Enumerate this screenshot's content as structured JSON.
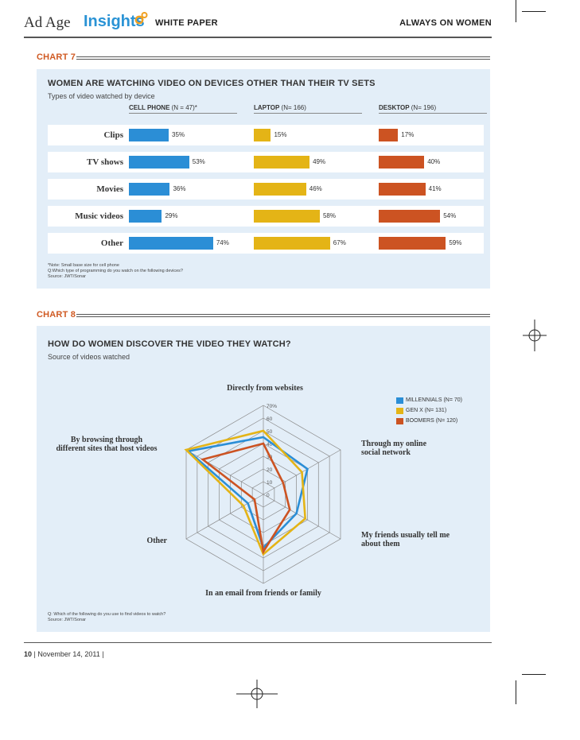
{
  "header": {
    "brand_adage": "Ad Age",
    "brand_insights": "Insights",
    "section": "WHITE PAPER",
    "report": "ALWAYS ON WOMEN"
  },
  "chart7": {
    "label": "CHART 7",
    "title": "WOMEN ARE WATCHING VIDEO ON DEVICES OTHER THAN THEIR TV SETS",
    "subtitle": "Types of video watched by device",
    "footnotes": [
      "*Note: Small base size for cell phone",
      "Q:Which type of programming do you watch on the following devices?",
      "Source: JWT/Sonar"
    ],
    "chart_data": {
      "type": "bar",
      "categories": [
        "Clips",
        "TV shows",
        "Movies",
        "Music videos",
        "Other"
      ],
      "series": [
        {
          "name": "CELL PHONE",
          "n": "(N = 47)*",
          "values": [
            35,
            53,
            36,
            29,
            74
          ],
          "labels": [
            "35%",
            "53%",
            "36%",
            "29%",
            "74%"
          ],
          "color": "#2b8ed6"
        },
        {
          "name": "LAPTOP",
          "n": "(N= 166)",
          "values": [
            15,
            49,
            46,
            58,
            67
          ],
          "labels": [
            "15%",
            "49%",
            "46%",
            "58%",
            "67%"
          ],
          "color": "#e4b416"
        },
        {
          "name": "DESKTOP",
          "n": "(N= 196)",
          "values": [
            17,
            40,
            41,
            54,
            59
          ],
          "labels": [
            "17%",
            "40%",
            "41%",
            "54%",
            "59%"
          ],
          "color": "#cc5322"
        }
      ]
    }
  },
  "chart8": {
    "label": "CHART 8",
    "title": "HOW DO WOMEN DISCOVER THE VIDEO THEY WATCH?",
    "subtitle": "Source of videos watched",
    "footnotes": [
      "Q: Which of the following do you use to find videos to watch?",
      "Source: JWT/Sonar"
    ],
    "chart_data": {
      "type": "radar",
      "axes": [
        "Directly from websites",
        "Through my online social network",
        "My friends usually tell me about them",
        "In an email from friends or family",
        "Other",
        "By browsing through different sites that host videos"
      ],
      "axis_lines": [
        [
          "Directly from websites"
        ],
        [
          "Through my online",
          "social network"
        ],
        [
          "My friends usually tell me",
          "about them"
        ],
        [
          "In an email from friends or family"
        ],
        [
          "Other"
        ],
        [
          "By browsing through",
          "different sites that host videos"
        ]
      ],
      "ticks": [
        "70%",
        "60",
        "50",
        "40",
        "30",
        "20",
        "10",
        "0"
      ],
      "tick_values": [
        70,
        60,
        50,
        40,
        30,
        20,
        10,
        0
      ],
      "rmax": 70,
      "series": [
        {
          "name": "MILLENNIALS (N= 70)",
          "values": [
            45,
            40,
            30,
            42,
            14,
            68
          ],
          "color": "#2b8ed6"
        },
        {
          "name": "GEN X (N= 131)",
          "values": [
            50,
            35,
            38,
            47,
            18,
            70
          ],
          "color": "#e4b416"
        },
        {
          "name": "BOOMERS (N= 120)",
          "values": [
            40,
            18,
            24,
            45,
            8,
            55
          ],
          "color": "#cc5322"
        }
      ]
    }
  },
  "footer": {
    "page": "10",
    "date": "November 14, 2011"
  }
}
